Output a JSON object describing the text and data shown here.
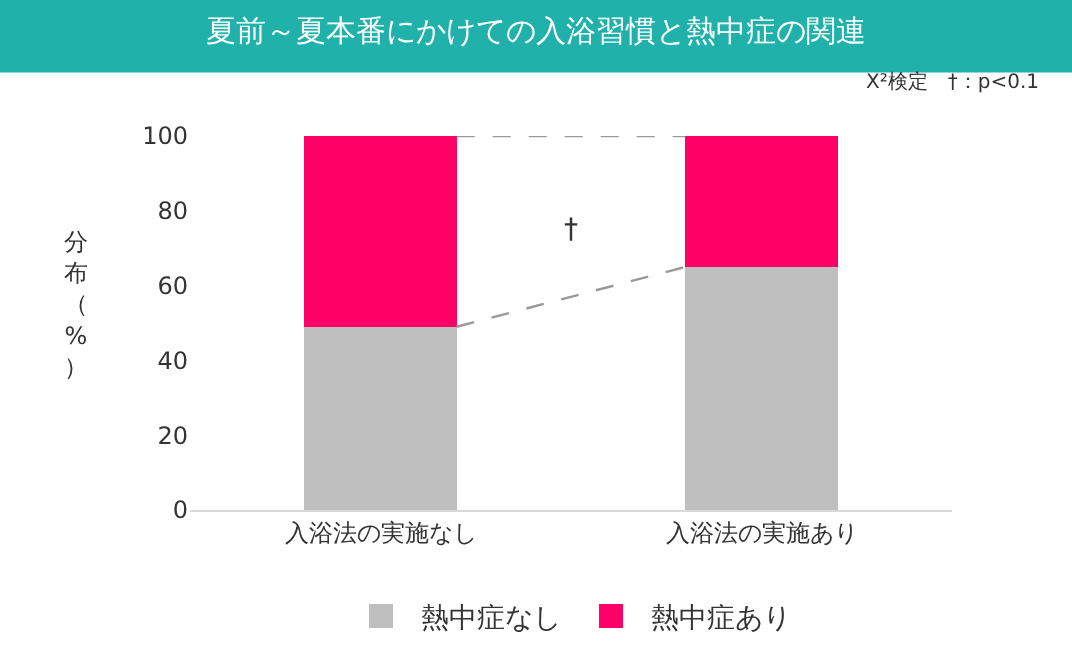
{
  "chart_data": {
    "type": "bar",
    "stacked": true,
    "title": "夏前～夏本番にかけての入浴習慣と熱中症の関連",
    "ylabel": "分布（%）",
    "categories": [
      "入浴法の実施なし",
      "入浴法の実施あり"
    ],
    "series": [
      {
        "name": "熱中症なし",
        "color": "#bfbfbf",
        "values": [
          49,
          65
        ]
      },
      {
        "name": "熱中症あり",
        "color": "#ff0066",
        "values": [
          51,
          35
        ]
      }
    ],
    "ylim": [
      0,
      100
    ],
    "yticks": [
      0,
      20,
      40,
      60,
      80,
      100
    ],
    "legend": "bottom",
    "annotations": [
      "X²検定　†：p<0.1",
      "†"
    ]
  }
}
